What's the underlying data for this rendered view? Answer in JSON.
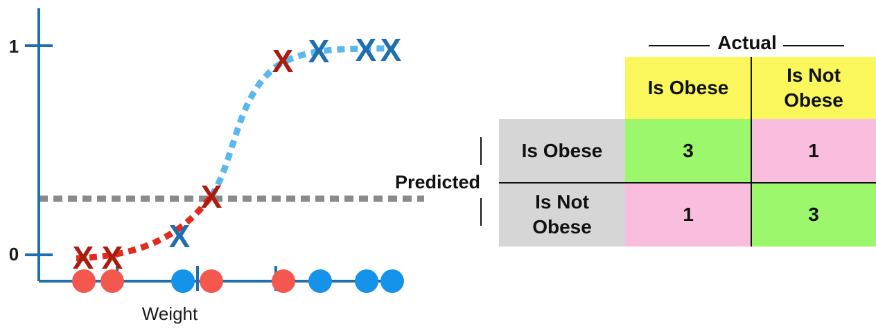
{
  "plot": {
    "y_tick_labels": [
      "1",
      "0"
    ],
    "x_axis_label": "Weight",
    "colors": {
      "axis": "#1f6fae",
      "obese": "#ab1c0f",
      "not_obese": "#1f6fae",
      "obese_point": "#f4574e",
      "not_obese_point": "#1593ea",
      "curve_upper": "#5bb8ee",
      "curve_lower": "#e32a1f",
      "threshold": "#8a8a8a"
    },
    "x_marks": [
      {
        "label": "X",
        "class": "obese"
      },
      {
        "label": "X",
        "class": "obese"
      },
      {
        "label": "X",
        "class": "not_obese"
      },
      {
        "label": "X",
        "class": "obese"
      },
      {
        "label": "X",
        "class": "obese"
      },
      {
        "label": "X",
        "class": "not_obese"
      },
      {
        "label": "X",
        "class": "not_obese"
      },
      {
        "label": "X",
        "class": "not_obese"
      }
    ],
    "points": [
      "obese",
      "obese",
      "not_obese",
      "obese",
      "obese",
      "not_obese",
      "not_obese",
      "not_obese"
    ]
  },
  "matrix": {
    "actual_label": "Actual",
    "predicted_label": "Predicted",
    "column_headers": [
      "Is Obese",
      "Is Not Obese"
    ],
    "row_headers": [
      "Is Obese",
      "Is Not Obese"
    ],
    "values": [
      [
        "3",
        "1"
      ],
      [
        "1",
        "3"
      ]
    ],
    "colors": {
      "header": "#f9f75b",
      "row_header": "#d6d6d6",
      "correct": "#9cf76d",
      "incorrect": "#f9bedd"
    }
  }
}
